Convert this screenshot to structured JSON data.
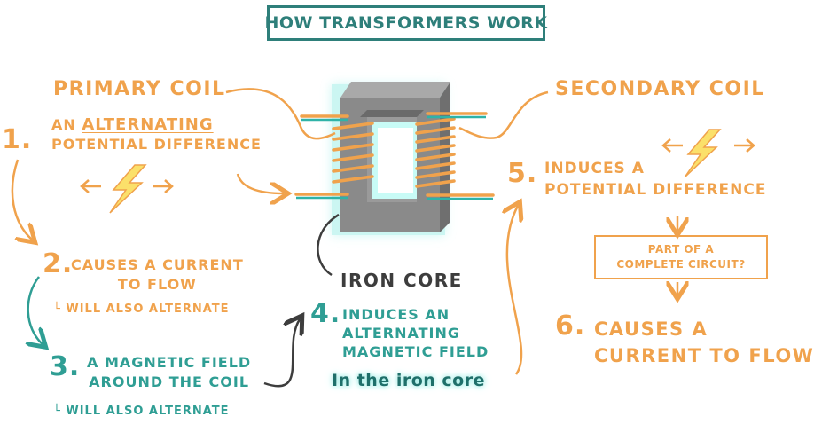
{
  "title": "How transformers work",
  "primary_coil": "Primary coil",
  "secondary_coil": "Secondary coil",
  "iron_core": "Iron core",
  "steps": {
    "s1": {
      "number": "1.",
      "line1_prefix": "An",
      "line1_emph": "alternating",
      "line2": "potential difference"
    },
    "s2": {
      "number": "2.",
      "line1": "Causes a current",
      "line2": "to flow",
      "note": "└ Will also alternate"
    },
    "s3": {
      "number": "3.",
      "line1": "A magnetic field",
      "line2": "around the coil",
      "note": "└ Will also alternate"
    },
    "s4": {
      "number": "4.",
      "line1": "Induces an",
      "line2": "alternating",
      "line3": "magnetic field",
      "line4": "In the iron core"
    },
    "s5": {
      "number": "5.",
      "line1": "Induces a",
      "line2": "potential difference"
    },
    "s6": {
      "number": "6.",
      "line1": "Causes a",
      "line2": "current to flow"
    }
  },
  "circuit_question": {
    "line1": "Part of a",
    "line2": "complete circuit?"
  },
  "colors": {
    "orange": "#f0a24c",
    "teal": "#2f9e94",
    "dark": "#3d3d3d",
    "core": "#8a8a8a",
    "glow": "#8fe8e0"
  },
  "icons": [
    "lightning-bolt-icon",
    "double-arrow-icon"
  ]
}
